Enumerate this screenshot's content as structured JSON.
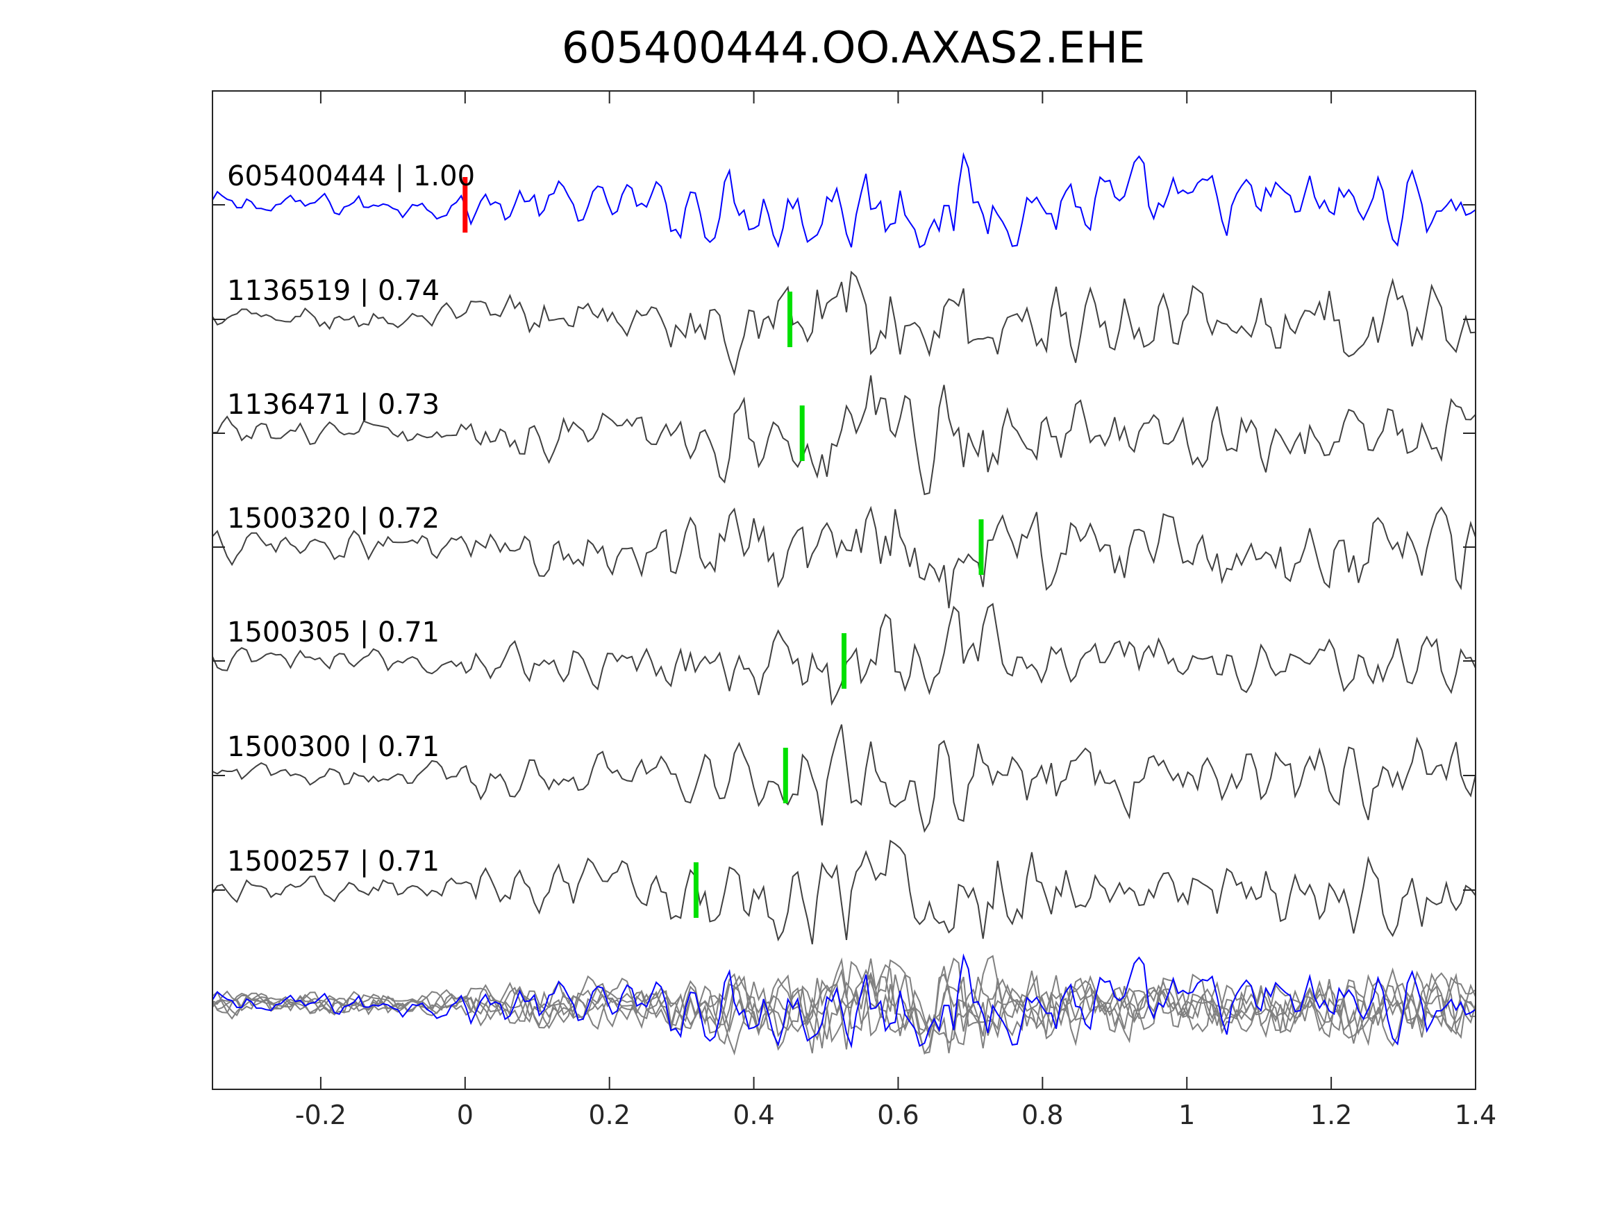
{
  "chart_data": {
    "type": "line",
    "title": "605400444.OO.AXAS2.EHE",
    "xlabel": "",
    "ylabel": "",
    "xlim": [
      -0.35,
      1.4
    ],
    "xticks": [
      -0.2,
      0,
      0.2,
      0.4,
      0.6,
      0.8,
      1,
      1.2,
      1.4
    ],
    "xtick_labels": [
      "-0.2",
      "0",
      "0.2",
      "0.4",
      "0.6",
      "0.8",
      "1",
      "1.2",
      "1.4"
    ],
    "grid": false,
    "colors": {
      "template": "#0000ff",
      "match": "#404040",
      "overlay": "#808080",
      "template_pick": "#ff0000",
      "match_pick": "#00e000"
    },
    "traces": [
      {
        "label": "605400444 | 1.00",
        "id": "605400444",
        "cc": 1.0,
        "pick_time": 0.0,
        "role": "template"
      },
      {
        "label": "1136519 | 0.74",
        "id": "1136519",
        "cc": 0.74,
        "pick_time": 0.45,
        "role": "match"
      },
      {
        "label": "1136471 | 0.73",
        "id": "1136471",
        "cc": 0.73,
        "pick_time": 0.467,
        "role": "match"
      },
      {
        "label": "1500320 | 0.72",
        "id": "1500320",
        "cc": 0.72,
        "pick_time": 0.715,
        "role": "match"
      },
      {
        "label": "1500305 | 0.71",
        "id": "1500305",
        "cc": 0.71,
        "pick_time": 0.525,
        "role": "match"
      },
      {
        "label": "1500300 | 0.71",
        "id": "1500300",
        "cc": 0.71,
        "pick_time": 0.444,
        "role": "match"
      },
      {
        "label": "1500257 | 0.71",
        "id": "1500257",
        "cc": 0.71,
        "pick_time": 0.32,
        "role": "match"
      }
    ],
    "stack": {
      "label": "",
      "description_visible": false
    }
  }
}
